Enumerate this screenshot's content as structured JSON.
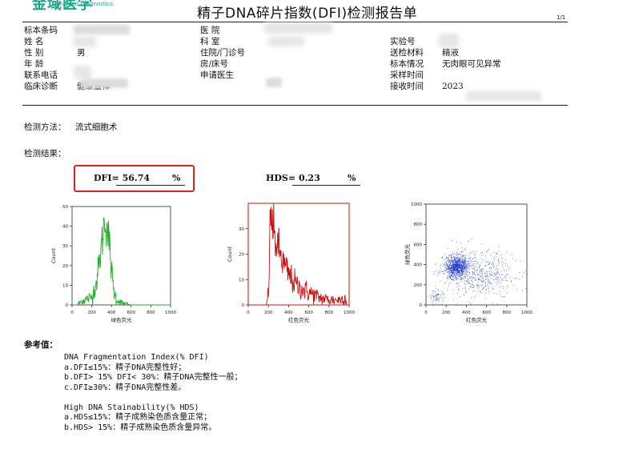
{
  "header": {
    "logo_text": "金域医学",
    "logo_sub": "KingMed Diagnostics",
    "title": "精子DNA碎片指数(DFI)检测报告单",
    "page": "1/1"
  },
  "info": {
    "col1": [
      {
        "label": "标本条码",
        "value": ""
      },
      {
        "label": "姓    名",
        "value": ""
      },
      {
        "label": "性    别",
        "value": "男"
      },
      {
        "label": "年    龄",
        "value": ""
      },
      {
        "label": "联系电话",
        "value": ""
      },
      {
        "label": "临床诊断",
        "value": "健康查体"
      }
    ],
    "col2": [
      {
        "label": "医    院",
        "value": ""
      },
      {
        "label": "科    室",
        "value": ""
      },
      {
        "label": "住院/门诊号",
        "value": ""
      },
      {
        "label": "房/床号",
        "value": ""
      },
      {
        "label": "申请医生",
        "value": ""
      }
    ],
    "col3": [
      {
        "label": "实验号",
        "value": ""
      },
      {
        "label": "送检材料",
        "value": "精液"
      },
      {
        "label": "标本情况",
        "value": "无肉眼可见异常"
      },
      {
        "label": "采样时间",
        "value": ""
      },
      {
        "label": "接收时间",
        "value": "2023"
      }
    ]
  },
  "method": {
    "label": "检测方法：",
    "value": "流式细胞术"
  },
  "result_label": "检测结果：",
  "dfi": {
    "label": "DFI=",
    "value": "56.74",
    "unit": "%"
  },
  "hds": {
    "label": "HDS=",
    "value": "0.23",
    "unit": "%"
  },
  "chart_data": [
    {
      "type": "area",
      "color": "#22aa22",
      "xlabel": "绿色荧光",
      "ylabel": "Count",
      "xlim": [
        0,
        1000
      ],
      "ylim": [
        0,
        50
      ],
      "xticks": [
        0,
        200,
        400,
        600,
        800,
        1000
      ],
      "yticks": [
        0,
        10,
        20,
        30,
        40,
        50
      ],
      "x": [
        0,
        50,
        100,
        150,
        200,
        250,
        300,
        320,
        340,
        360,
        380,
        400,
        420,
        450,
        500,
        600,
        800,
        1000
      ],
      "y": [
        0,
        0,
        2,
        3,
        4,
        12,
        30,
        40,
        43,
        38,
        30,
        18,
        8,
        3,
        1,
        0,
        0,
        0
      ]
    },
    {
      "type": "area",
      "color": "#cc1111",
      "xlabel": "红色荧光",
      "ylabel": "Count",
      "xlim": [
        0,
        1000
      ],
      "ylim": [
        0,
        40
      ],
      "xticks": [
        0,
        200,
        400,
        600,
        800,
        1000
      ],
      "yticks": [
        0,
        10,
        20,
        30
      ],
      "x": [
        0,
        180,
        190,
        200,
        210,
        220,
        240,
        260,
        280,
        300,
        350,
        400,
        450,
        500,
        600,
        700,
        800,
        900,
        960,
        980,
        1000
      ],
      "y": [
        0,
        0,
        2,
        5,
        18,
        36,
        32,
        26,
        24,
        22,
        16,
        12,
        9,
        7,
        5,
        3,
        2,
        2,
        3,
        0,
        0
      ]
    },
    {
      "type": "scatter",
      "color": "#1530cc",
      "xlabel": "红色荧光",
      "ylabel": "绿色荧光",
      "xlim": [
        0,
        1000
      ],
      "ylim": [
        0,
        1000
      ],
      "xticks": [
        0,
        200,
        400,
        600,
        800,
        1000
      ],
      "yticks": [
        0,
        200,
        400,
        600,
        800,
        1000
      ],
      "clusters": [
        {
          "cx": 300,
          "cy": 380,
          "sx": 55,
          "sy": 55,
          "n": 900
        },
        {
          "cx": 520,
          "cy": 300,
          "sx": 180,
          "sy": 120,
          "n": 500
        },
        {
          "cx": 100,
          "cy": 80,
          "sx": 40,
          "sy": 40,
          "n": 60
        }
      ]
    }
  ],
  "reference": {
    "title": "参考值：",
    "lines": [
      "DNA Fragmentation Index(% DFI)",
      "a.DFI≤15%：精子DNA完整性好；",
      "b.DFI> 15% DFI< 30%：精子DNA完整性一般；",
      "c.DFI≥30%：精子DNA完整性差。",
      "",
      "High DNA Stainability(% HDS)",
      "a.HDS≤15%：精子成熟染色质含量正常；",
      "b.HDS> 15%：精子成熟染色质含量异常。"
    ]
  }
}
